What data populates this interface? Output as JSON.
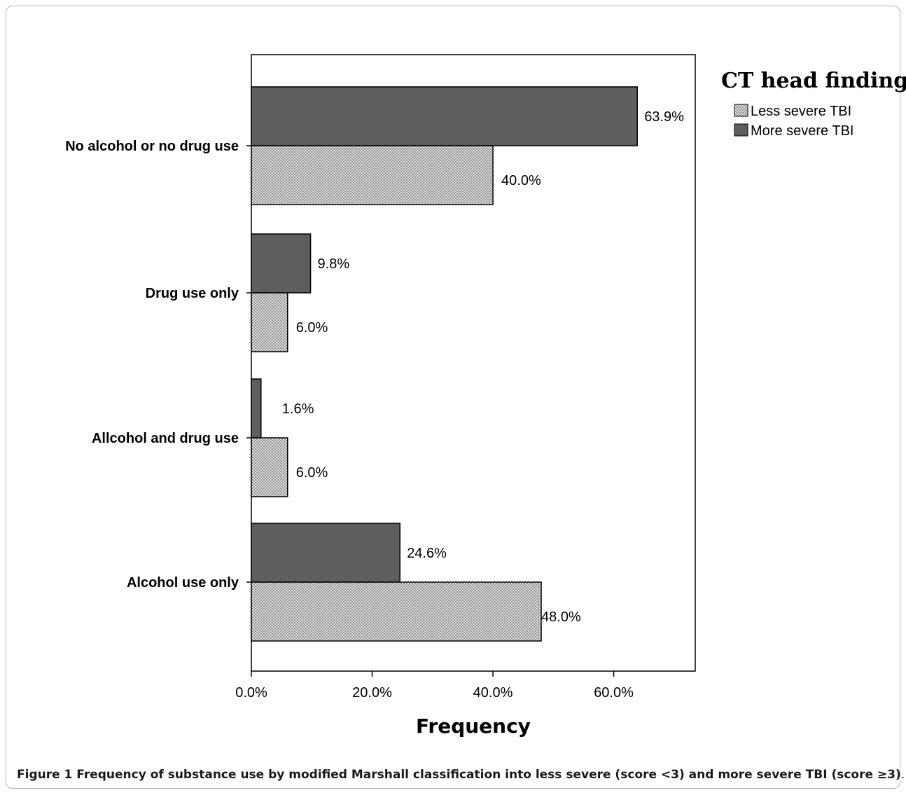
{
  "chart_data": {
    "type": "bar",
    "orientation": "horizontal",
    "categories": [
      "No alcohol or no drug use",
      "Drug use only",
      "Allcohol and drug use",
      "Alcohol use only"
    ],
    "series": [
      {
        "name": "More severe TBI",
        "values": [
          63.9,
          9.8,
          1.6,
          24.6
        ],
        "data_labels": [
          "63.9%",
          "9.8%",
          "1.6%",
          "24.6%"
        ],
        "color": "#5e5e5e"
      },
      {
        "name": "Less severe TBI",
        "values": [
          40.0,
          6.0,
          6.0,
          48.0
        ],
        "data_labels": [
          "40.0%",
          "6.0%",
          "6.0%",
          "48.0%"
        ],
        "color": "#cfcfcf",
        "pattern": "dotted"
      }
    ],
    "xlabel": "Frequency",
    "ylabel": "",
    "xlim": [
      0,
      73.5
    ],
    "xticks": [
      0,
      20,
      40,
      60
    ],
    "xtick_labels": [
      "0.0%",
      "20.0%",
      "40.0%",
      "60.0%"
    ],
    "legend": {
      "title": "CT head findings",
      "placement": "top-right",
      "entries": [
        "Less severe TBI",
        "More severe TBI"
      ]
    },
    "grid": false
  },
  "caption": {
    "label": "Figure 1",
    "text": " Frequency of substance use by modified Marshall classification into less severe (score <3) and more severe TBI (score ≥3)",
    "end": "."
  }
}
